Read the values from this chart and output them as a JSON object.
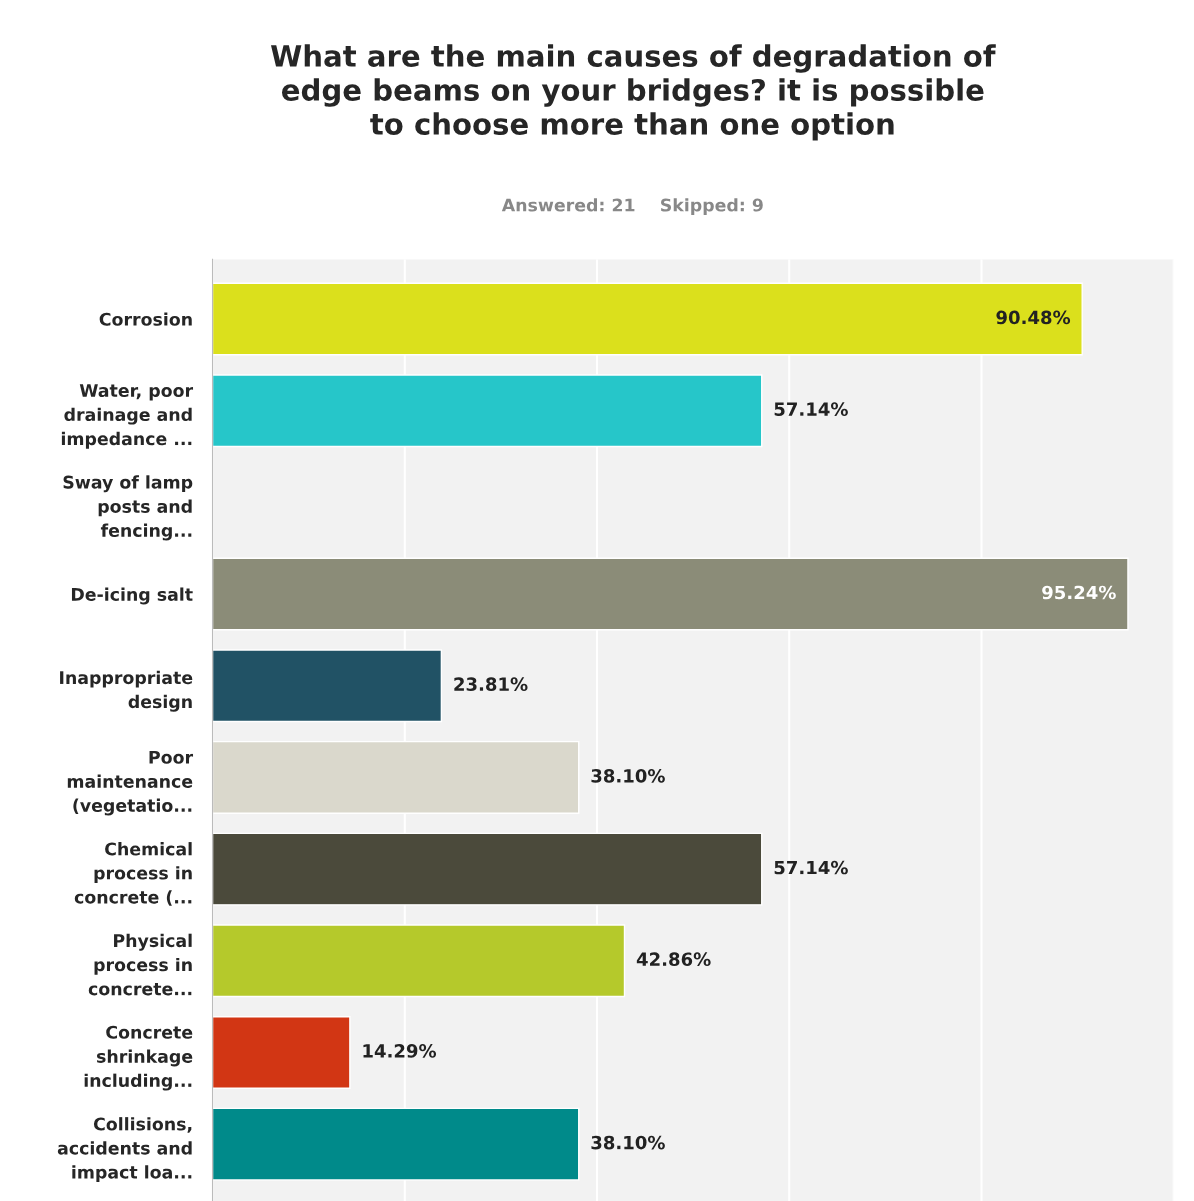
{
  "chart_data": {
    "type": "bar",
    "orientation": "horizontal",
    "title": "What are the main causes of degradation of\nedge beams on your bridges? it is possible\nto choose more than one option",
    "subtitle": "Answered: 21    Skipped: 9",
    "categories": [
      "Corrosion",
      "Water, poor\ndrainage and\nimpedance ...",
      "Sway of lamp\nposts and\nfencing...",
      "De-icing salt",
      "Inappropriate\ndesign",
      "Poor\nmaintenance\n(vegetatio...",
      "Chemical\nprocess in\nconcrete (...",
      "Physical\nprocess in\nconcrete...",
      "Concrete\nshrinkage\nincluding...",
      "Collisions,\naccidents and\nimpact loa..."
    ],
    "values": [
      90.48,
      57.14,
      0,
      95.24,
      23.81,
      38.1,
      57.14,
      42.86,
      14.29,
      38.1
    ],
    "value_labels": [
      "90.48%",
      "57.14%",
      null,
      "95.24%",
      "23.81%",
      "38.10%",
      "57.14%",
      "42.86%",
      "14.29%",
      "38.10%"
    ],
    "colors": [
      "#dbe01c",
      "#26c6c9",
      null,
      "#8b8c78",
      "#215265",
      "#dad8cc",
      "#4b4a3b",
      "#b5c92b",
      "#d23614",
      "#008a8a"
    ],
    "xlim": [
      0,
      100
    ],
    "xticks": [
      {
        "value": 0,
        "label": null
      },
      {
        "value": 20,
        "label": null
      },
      {
        "value": 40,
        "label": null
      },
      {
        "value": 60,
        "label": null
      },
      {
        "value": 80,
        "label": null
      },
      {
        "value": 100,
        "label": null
      }
    ],
    "grid": "x",
    "tick_labels": "y",
    "legend": false
  }
}
